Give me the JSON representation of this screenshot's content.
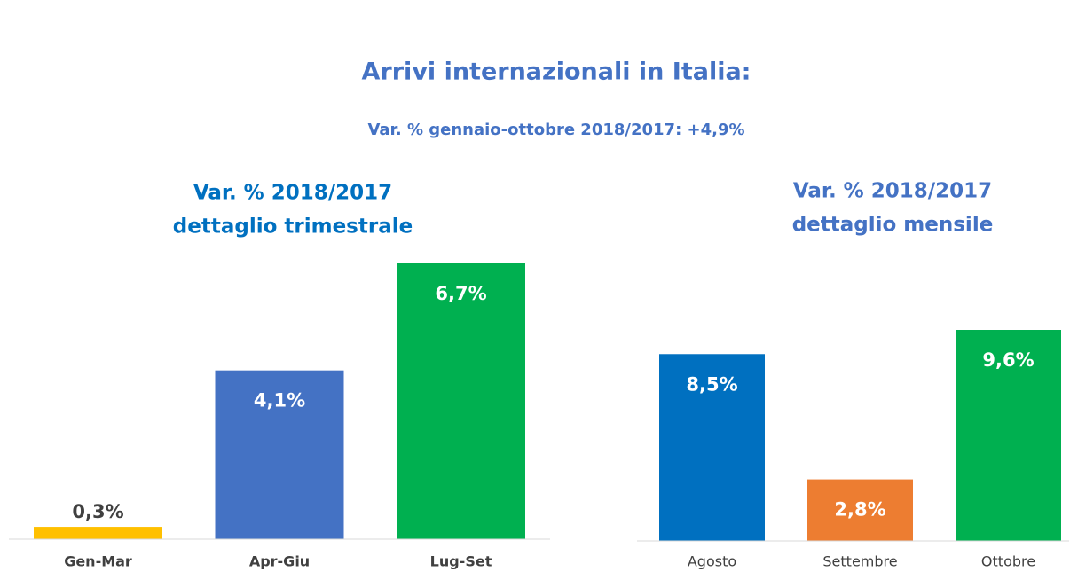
{
  "header": {
    "title": "Arrivi internazionali in Italia:",
    "subtitle": "Var. % gennaio-ottobre 2018/2017: +4,9%"
  },
  "chart_data": [
    {
      "type": "bar",
      "title": [
        "Var. % 2018/2017",
        "dettaglio trimestrale"
      ],
      "categories": [
        "Gen-Mar",
        "Apr-Giu",
        "Lug-Set"
      ],
      "values": [
        0.3,
        4.1,
        6.7
      ],
      "value_labels": [
        "0,3%",
        "4,1%",
        "6,7%"
      ],
      "colors": [
        "#ffc000",
        "#4472c4",
        "#00b050"
      ]
    },
    {
      "type": "bar",
      "title": [
        "Var. % 2018/2017",
        "dettaglio mensile"
      ],
      "categories": [
        "Agosto",
        "Settembre",
        "Ottobre"
      ],
      "values": [
        8.5,
        2.8,
        9.6
      ],
      "value_labels": [
        "8,5%",
        "2,8%",
        "9,6%"
      ],
      "colors": [
        "#0070c0",
        "#ed7d31",
        "#00b050"
      ]
    }
  ]
}
